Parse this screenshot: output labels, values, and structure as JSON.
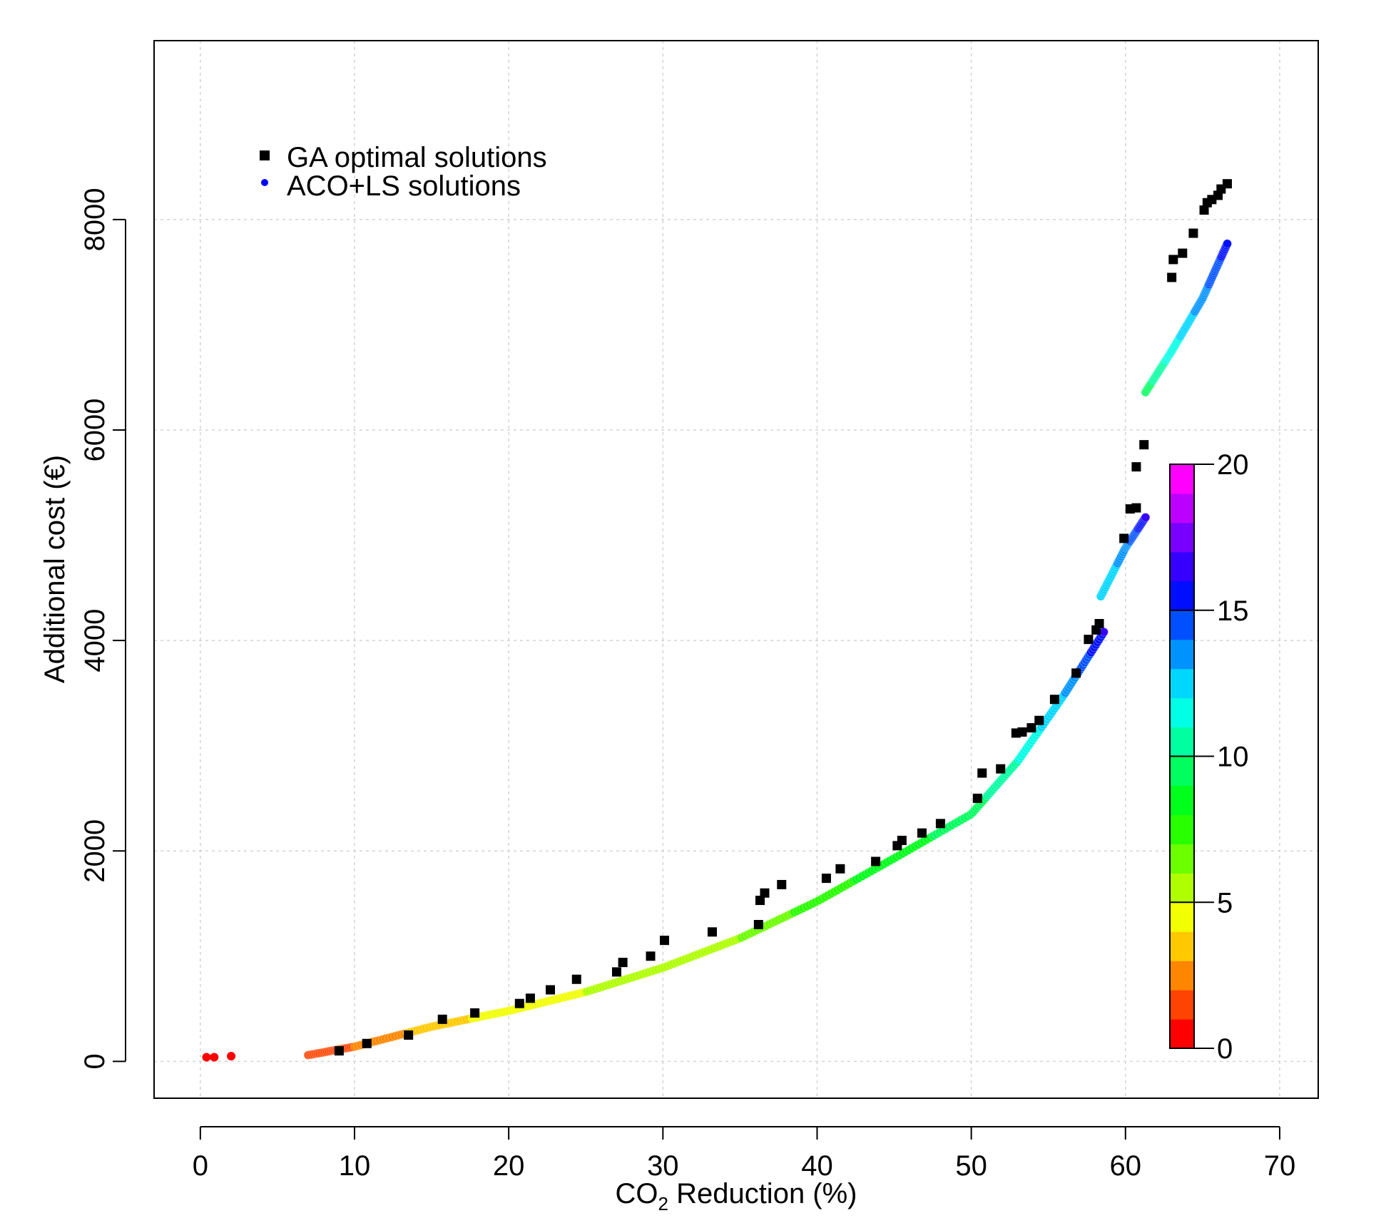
{
  "chart_data": {
    "type": "scatter",
    "title": "",
    "xlabel": {
      "prefix": "CO",
      "subscript": "2",
      "suffix": " Reduction (%)"
    },
    "ylabel": "Additional cost (€)",
    "xlim": [
      -3,
      72.5
    ],
    "ylim": [
      -350,
      9700
    ],
    "x_ticks": [
      0,
      10,
      20,
      30,
      40,
      50,
      60,
      70
    ],
    "y_ticks": [
      0,
      2000,
      4000,
      6000,
      8000
    ],
    "grid": true,
    "legend": {
      "placement": "top-left",
      "entries": [
        {
          "label": "GA optimal solutions",
          "marker": "square",
          "color": "#000000"
        },
        {
          "label": "ACO+LS solutions",
          "marker": "circle",
          "color": "#0000ff"
        }
      ]
    },
    "colorbar": {
      "range": [
        0,
        20
      ],
      "ticks": [
        0,
        5,
        10,
        15,
        20
      ],
      "placement": "right"
    },
    "series": [
      {
        "name": "GA optimal solutions",
        "marker": "square",
        "color": "#000000",
        "points": [
          [
            9.0,
            100
          ],
          [
            10.8,
            170
          ],
          [
            13.5,
            250
          ],
          [
            15.7,
            400
          ],
          [
            17.8,
            460
          ],
          [
            20.7,
            550
          ],
          [
            21.4,
            600
          ],
          [
            22.7,
            680
          ],
          [
            24.4,
            780
          ],
          [
            27.0,
            850
          ],
          [
            27.4,
            940
          ],
          [
            29.2,
            1000
          ],
          [
            30.1,
            1150
          ],
          [
            33.2,
            1230
          ],
          [
            36.2,
            1300
          ],
          [
            36.3,
            1530
          ],
          [
            36.6,
            1600
          ],
          [
            37.7,
            1680
          ],
          [
            40.6,
            1740
          ],
          [
            41.5,
            1830
          ],
          [
            43.8,
            1900
          ],
          [
            45.2,
            2050
          ],
          [
            45.5,
            2100
          ],
          [
            46.8,
            2170
          ],
          [
            48.0,
            2260
          ],
          [
            50.4,
            2500
          ],
          [
            50.7,
            2740
          ],
          [
            51.9,
            2780
          ],
          [
            52.9,
            3120
          ],
          [
            53.3,
            3130
          ],
          [
            53.9,
            3170
          ],
          [
            54.4,
            3240
          ],
          [
            55.4,
            3440
          ],
          [
            56.8,
            3690
          ],
          [
            57.6,
            4010
          ],
          [
            58.1,
            4100
          ],
          [
            58.3,
            4160
          ],
          [
            59.9,
            4970
          ],
          [
            60.3,
            5250
          ],
          [
            60.7,
            5260
          ],
          [
            60.7,
            5650
          ],
          [
            61.2,
            5860
          ],
          [
            63.0,
            7450
          ],
          [
            63.1,
            7620
          ],
          [
            63.7,
            7680
          ],
          [
            64.4,
            7870
          ],
          [
            65.1,
            8090
          ],
          [
            65.3,
            8160
          ],
          [
            65.6,
            8190
          ],
          [
            66.0,
            8230
          ],
          [
            66.2,
            8290
          ],
          [
            66.6,
            8340
          ]
        ]
      },
      {
        "name": "ACO+LS solutions",
        "marker": "circle",
        "color_by": "iteration",
        "isolated_points": [
          [
            0.4,
            40,
            0.3
          ],
          [
            0.9,
            40,
            0.3
          ],
          [
            2.0,
            50,
            0.5
          ]
        ],
        "curve_segments": [
          {
            "x": [
              7.0,
              10,
              15,
              20,
              25,
              30,
              35,
              40,
              45,
              50,
              53,
              56,
              58.6
            ],
            "y": [
              60,
              140,
              330,
              480,
              660,
              890,
              1170,
              1520,
              1930,
              2350,
              2850,
              3480,
              4080
            ],
            "c": [
              1.0,
              2.0,
              3.5,
              4.5,
              5.0,
              5.5,
              6.0,
              7.5,
              8.5,
              9.5,
              11.0,
              13.0,
              16.0
            ],
            "count": 300
          },
          {
            "x": [
              58.4,
              60.0,
              61.3
            ],
            "y": [
              4420,
              4880,
              5170
            ],
            "c": [
              12.0,
              13.5,
              16.0
            ],
            "count": 45
          },
          {
            "x": [
              61.3,
              63.0,
              65.0,
              66.6
            ],
            "y": [
              6360,
              6750,
              7250,
              7770
            ],
            "c": [
              9.5,
              11.5,
              13.5,
              15.5
            ],
            "count": 90
          }
        ]
      }
    ]
  }
}
